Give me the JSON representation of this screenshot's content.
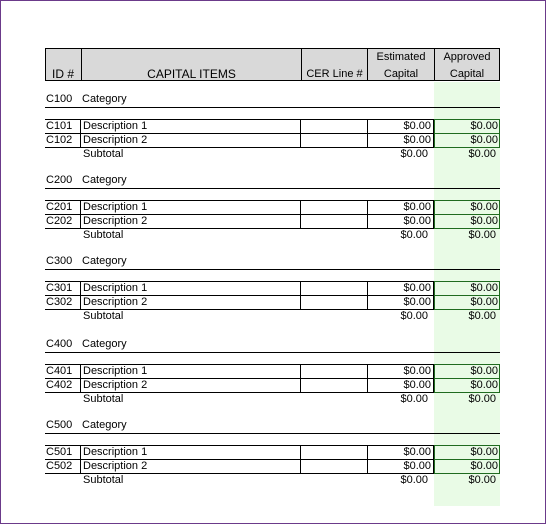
{
  "header": {
    "id": "ID #",
    "items": "CAPITAL ITEMS",
    "cer": "CER Line #",
    "est_top": "Estimated",
    "est_bottom": "Capital",
    "appr_top": "Approved",
    "appr_bottom": "Capital"
  },
  "groups": [
    {
      "code": "C100",
      "category": "Category",
      "rows": [
        {
          "id": "C101",
          "desc": "Description 1",
          "est": "$0.00",
          "appr": "$0.00"
        },
        {
          "id": "C102",
          "desc": "Description 2",
          "est": "$0.00",
          "appr": "$0.00"
        }
      ],
      "subtotal_label": "Subtotal",
      "subtotal_est": "$0.00",
      "subtotal_appr": "$0.00"
    },
    {
      "code": "C200",
      "category": "Category",
      "rows": [
        {
          "id": "C201",
          "desc": "Description 1",
          "est": "$0.00",
          "appr": "$0.00"
        },
        {
          "id": "C202",
          "desc": "Description 2",
          "est": "$0.00",
          "appr": "$0.00"
        }
      ],
      "subtotal_label": "Subtotal",
      "subtotal_est": "$0.00",
      "subtotal_appr": "$0.00"
    },
    {
      "code": "C300",
      "category": "Category",
      "rows": [
        {
          "id": "C301",
          "desc": "Description 1",
          "est": "$0.00",
          "appr": "$0.00"
        },
        {
          "id": "C302",
          "desc": "Description 2",
          "est": "$0.00",
          "appr": "$0.00"
        }
      ],
      "subtotal_label": "Subtotal",
      "subtotal_est": "$0.00",
      "subtotal_appr": "$0.00"
    },
    {
      "code": "C400",
      "category": "Category",
      "rows": [
        {
          "id": "C401",
          "desc": "Description 1",
          "est": "$0.00",
          "appr": "$0.00"
        },
        {
          "id": "C402",
          "desc": "Description 2",
          "est": "$0.00",
          "appr": "$0.00"
        }
      ],
      "subtotal_label": "Subtotal",
      "subtotal_est": "$0.00",
      "subtotal_appr": "$0.00"
    },
    {
      "code": "C500",
      "category": "Category",
      "rows": [
        {
          "id": "C501",
          "desc": "Description 1",
          "est": "$0.00",
          "appr": "$0.00"
        },
        {
          "id": "C502",
          "desc": "Description 2",
          "est": "$0.00",
          "appr": "$0.00"
        }
      ],
      "subtotal_label": "Subtotal",
      "subtotal_est": "$0.00",
      "subtotal_appr": "$0.00"
    }
  ],
  "colors": {
    "header_fill": "#d9d9d9",
    "approved_fill": "#e9fbe6",
    "approved_border": "#1f6b1f",
    "frame": "#6b3a8a"
  }
}
